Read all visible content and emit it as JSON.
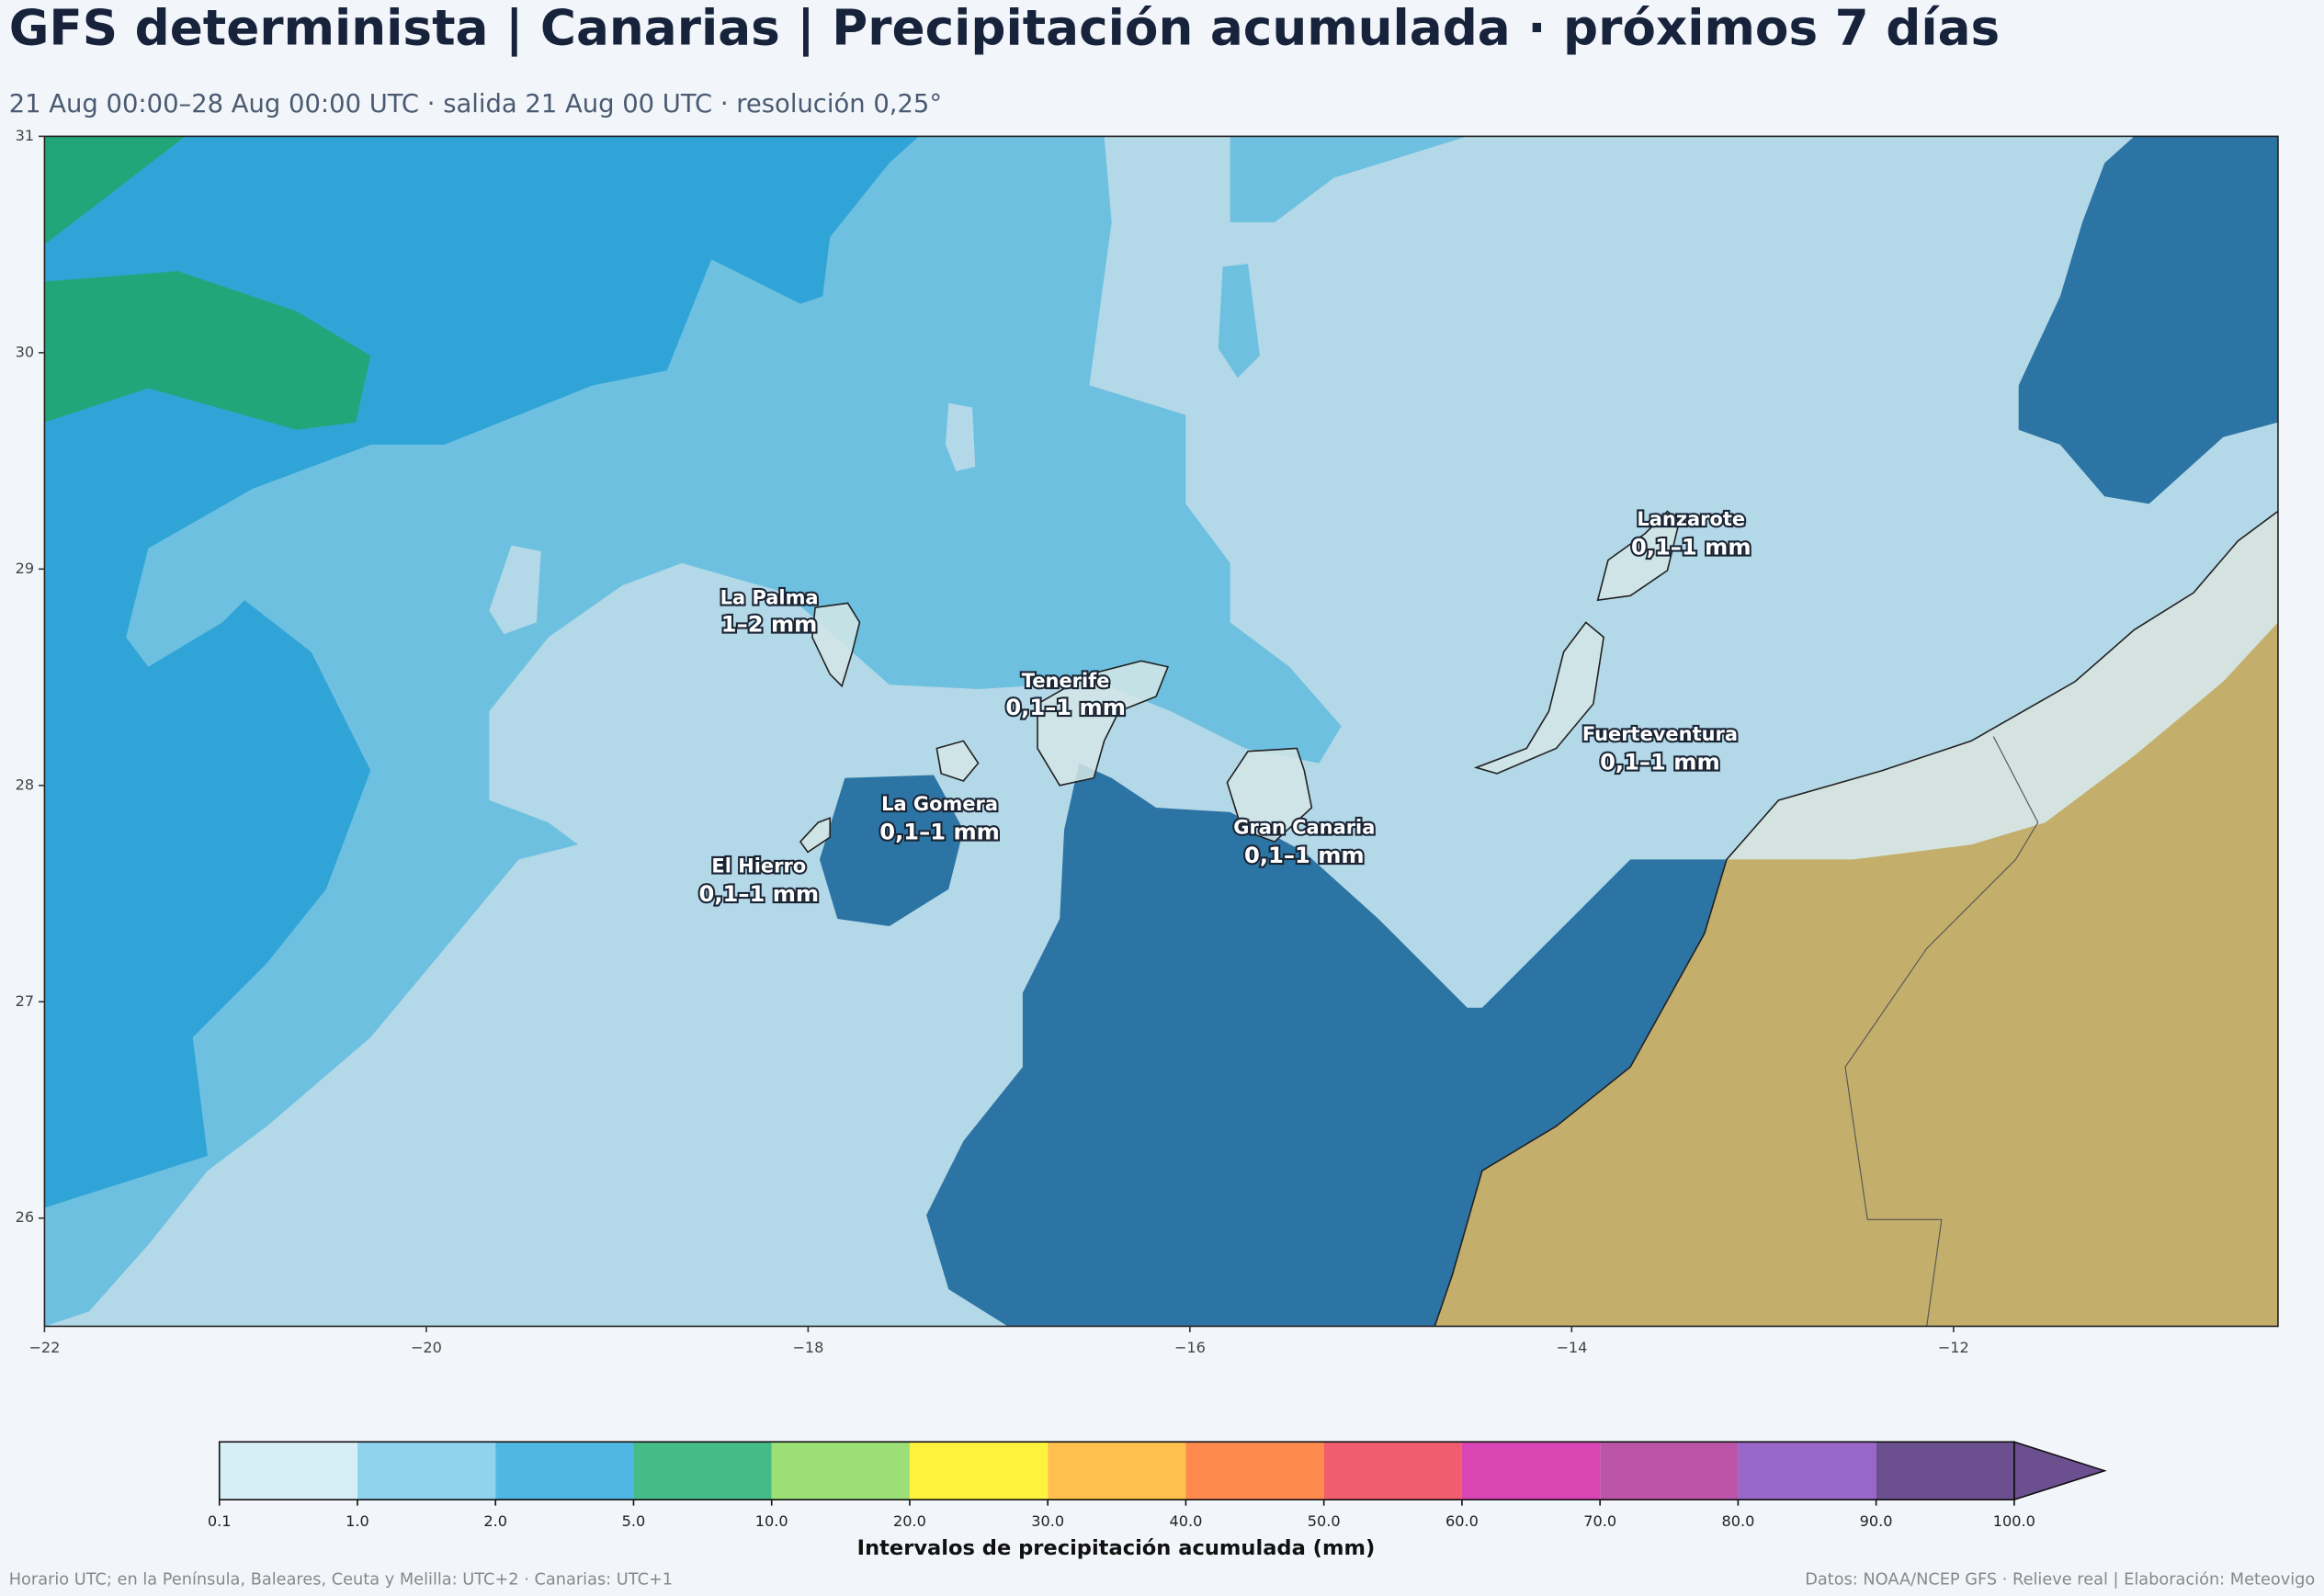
{
  "header": {
    "title": "GFS determinista | Canarias | Precipitación acumulada · próximos 7 días",
    "subtitle": "21 Aug 00:00–28 Aug 00:00 UTC · salida 21 Aug 00 UTC · resolución 0,25°"
  },
  "map": {
    "xlim": [
      -22,
      -10.3
    ],
    "ylim": [
      25.5,
      31
    ],
    "xticks": [
      {
        "value": -22,
        "label": "−22"
      },
      {
        "value": -20,
        "label": "−20"
      },
      {
        "value": -18,
        "label": "−18"
      },
      {
        "value": -16,
        "label": "−16"
      },
      {
        "value": -14,
        "label": "−14"
      },
      {
        "value": -12,
        "label": "−12"
      }
    ],
    "yticks": [
      26,
      27,
      28,
      29,
      30,
      31
    ],
    "islands": [
      {
        "name": "La Palma",
        "value": "1–2 mm"
      },
      {
        "name": "Tenerife",
        "value": "0,1–1 mm"
      },
      {
        "name": "La Gomera",
        "value": "0,1–1 mm"
      },
      {
        "name": "El Hierro",
        "value": "0,1–1 mm"
      },
      {
        "name": "Gran Canaria",
        "value": "0,1–1 mm"
      },
      {
        "name": "Lanzarote",
        "value": "0,1–1 mm"
      },
      {
        "name": "Fuerteventura",
        "value": "0,1–1 mm"
      }
    ]
  },
  "colorbar": {
    "label": "Intervalos de precipitación acumulada (mm)",
    "ticks": [
      {
        "value": 0.1,
        "label": "0.1"
      },
      {
        "value": 1,
        "label": "1.0"
      },
      {
        "value": 2,
        "label": "2.0"
      },
      {
        "value": 5,
        "label": "5.0"
      },
      {
        "value": 10,
        "label": "10.0"
      },
      {
        "value": 20,
        "label": "20.0"
      },
      {
        "value": 30,
        "label": "30.0"
      },
      {
        "value": 40,
        "label": "40.0"
      },
      {
        "value": 50,
        "label": "50.0"
      },
      {
        "value": 60,
        "label": "60.0"
      },
      {
        "value": 70,
        "label": "70.0"
      },
      {
        "value": 80,
        "label": "80.0"
      },
      {
        "value": 90,
        "label": "90.0"
      },
      {
        "value": 100,
        "label": "100.0"
      }
    ],
    "colors": [
      "#d6eef6",
      "#8fd3ee",
      "#4fb8e2",
      "#45bb87",
      "#9bdf76",
      "#fff23f",
      "#ffc04e",
      "#ff8a4e",
      "#f05d6e",
      "#d946b4",
      "#bc55a8",
      "#9966c9",
      "#6b4f8f"
    ],
    "extend_color": "#6b4f8f"
  },
  "footer": {
    "left": "Horario UTC; en la Península, Baleares, Ceuta y Melilla: UTC+2 · Canarias: UTC+1",
    "right": "Datos: NOAA/NCEP GFS · Relieve real | Elaboración: Meteovigo"
  }
}
